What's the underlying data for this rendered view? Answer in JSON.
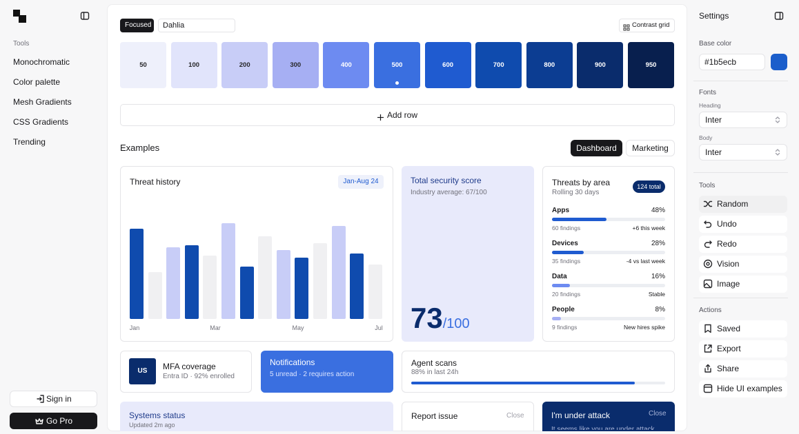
{
  "sidebar": {
    "nav_heading": "Tools",
    "nav": [
      "Monochromatic",
      "Color palette",
      "Mesh Gradients",
      "CSS Gradients",
      "Trending"
    ],
    "sign_in": "Sign in",
    "go_pro": "Go Pro"
  },
  "toolbar": {
    "mode": "Focused",
    "palette_name": "Dahlia",
    "contrast_grid": "Contrast grid"
  },
  "swatches": [
    {
      "label": "50",
      "color": "#eef0fb"
    },
    {
      "label": "100",
      "color": "#e1e4fb"
    },
    {
      "label": "200",
      "color": "#c8cdf7"
    },
    {
      "label": "300",
      "color": "#a6aff3"
    },
    {
      "label": "400",
      "color": "#6d8bf1"
    },
    {
      "label": "500",
      "color": "#3a6fe0",
      "selected": true
    },
    {
      "label": "600",
      "color": "#1f5bd0"
    },
    {
      "label": "700",
      "color": "#0f4bae"
    },
    {
      "label": "800",
      "color": "#0c3d92"
    },
    {
      "label": "900",
      "color": "#0a2c6c"
    },
    {
      "label": "950",
      "color": "#081f4e"
    }
  ],
  "add_row": "Add row",
  "examples": {
    "title": "Examples",
    "tabs": [
      "Dashboard",
      "Marketing"
    ],
    "active_tab": 0
  },
  "threat_history": {
    "title": "Threat history",
    "badge": "Jan-Aug 24",
    "x_labels": [
      "Jan",
      "Mar",
      "May",
      "Jul"
    ],
    "bars": {
      "values": [
        131,
        68,
        104,
        107,
        92,
        139,
        76,
        120,
        100,
        89,
        110,
        135,
        95,
        79
      ],
      "colors": [
        "#0f4bae",
        "#f0f0f2",
        "#c8cdf7",
        "#0f4bae",
        "#f0f0f2",
        "#c8cdf7",
        "#0f4bae",
        "#f0f0f2",
        "#c8cdf7",
        "#0f4bae",
        "#f0f0f2",
        "#c8cdf7",
        "#0f4bae",
        "#f0f0f2"
      ]
    }
  },
  "security_score": {
    "title": "Total security score",
    "subtitle": "Industry average: 67/100",
    "score": 73,
    "out_of": "/100"
  },
  "threats_by_area": {
    "title": "Threats by area",
    "subtitle": "Rolling 30 days",
    "badge": "124 total",
    "items": [
      {
        "name": "Apps",
        "value": 48,
        "value_label": "48%",
        "findings": "60 findings",
        "note": "+6 this week",
        "color": "#1f5bd0"
      },
      {
        "name": "Devices",
        "value": 28,
        "value_label": "28%",
        "findings": "35 findings",
        "note": "-4 vs last week",
        "color": "#1f5bd0"
      },
      {
        "name": "Data",
        "value": 16,
        "value_label": "16%",
        "findings": "20 findings",
        "note": "Stable",
        "color": "#6d8bf1"
      },
      {
        "name": "People",
        "value": 8,
        "value_label": "8%",
        "findings": "9 findings",
        "note": "New hires spike",
        "color": "#a6aff3"
      }
    ]
  },
  "mfa": {
    "icon": "US",
    "title": "MFA coverage",
    "subtitle": "Entra ID · 92% enrolled"
  },
  "notifications": {
    "title": "Notifications",
    "subtitle": "5 unread · 2 requires action"
  },
  "agent_scans": {
    "title": "Agent scans",
    "subtitle": "88% in last 24h",
    "progress": 88
  },
  "systems_status": {
    "title": "Systems status",
    "subtitle": "Updated 2m ago"
  },
  "report_issue": {
    "title": "Report issue",
    "close": "Close"
  },
  "attack": {
    "title": "I'm under attack",
    "close": "Close",
    "body": "It seems like you are under attack"
  },
  "settings": {
    "title": "Settings",
    "base_color_label": "Base color",
    "base_color": "#1b5ecb",
    "fonts_heading": "Fonts",
    "heading_label": "Heading",
    "heading_font": "Inter",
    "body_label": "Body",
    "body_font": "Inter",
    "tools_heading": "Tools",
    "tools": [
      "Random",
      "Undo",
      "Redo",
      "Vision",
      "Image"
    ],
    "actions_heading": "Actions",
    "actions": [
      "Saved",
      "Export",
      "Share",
      "Hide UI examples"
    ]
  }
}
